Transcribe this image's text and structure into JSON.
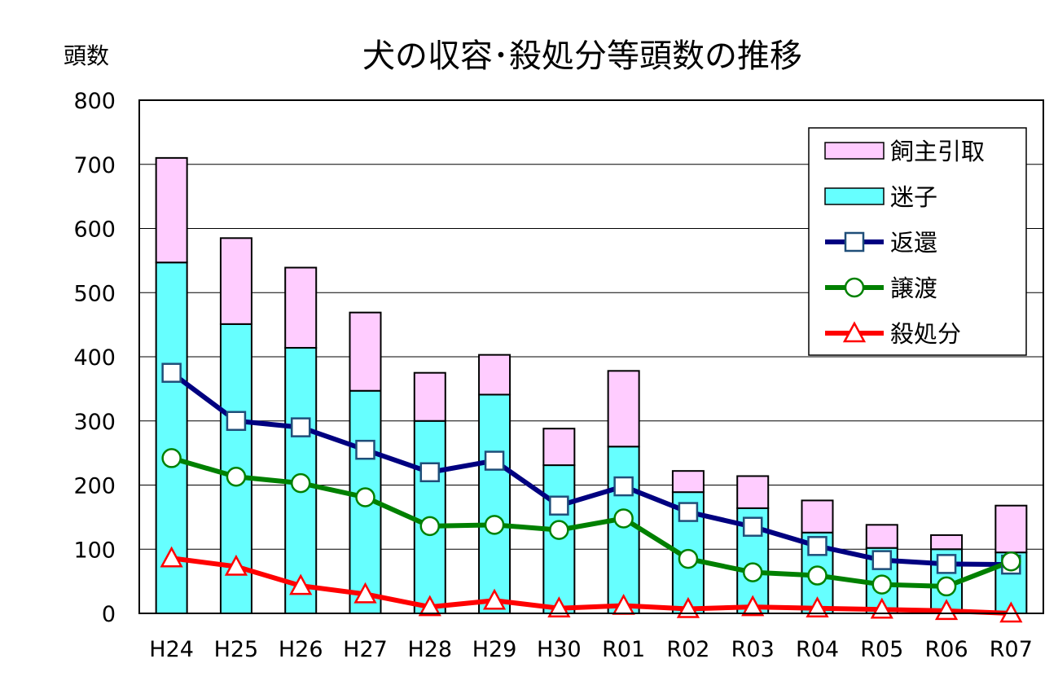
{
  "chart_data": {
    "type": "bar",
    "title": "犬の収容･殺処分等頭数の推移",
    "ylabel": "頭数",
    "xlabel": "",
    "ylim": [
      0,
      800
    ],
    "yticks": [
      0,
      100,
      200,
      300,
      400,
      500,
      600,
      700,
      800
    ],
    "grid": true,
    "legend_position": "top-right",
    "categories": [
      "H24",
      "H25",
      "H26",
      "H27",
      "H28",
      "H29",
      "H30",
      "R01",
      "R02",
      "R03",
      "R04",
      "R05",
      "R06",
      "R07"
    ],
    "stacked_bars": [
      {
        "name": "飼主引取",
        "color": "#ffccff",
        "values": [
          163,
          134,
          125,
          122,
          75,
          62,
          57,
          118,
          33,
          50,
          50,
          36,
          22,
          73
        ]
      },
      {
        "name": "迷子",
        "color": "#66ffff",
        "values": [
          547,
          451,
          414,
          347,
          300,
          341,
          231,
          260,
          189,
          164,
          126,
          102,
          100,
          95
        ]
      }
    ],
    "series": [
      {
        "name": "返還",
        "color": "#000080",
        "marker": "square",
        "values": [
          375,
          300,
          290,
          255,
          220,
          238,
          168,
          198,
          158,
          135,
          105,
          83,
          77,
          76
        ]
      },
      {
        "name": "譲渡",
        "color": "#008000",
        "marker": "circle",
        "values": [
          242,
          213,
          203,
          181,
          136,
          138,
          130,
          148,
          85,
          64,
          59,
          45,
          42,
          81
        ]
      },
      {
        "name": "殺処分",
        "color": "#ff0000",
        "marker": "triangle",
        "values": [
          86,
          73,
          43,
          30,
          10,
          20,
          8,
          12,
          7,
          10,
          8,
          6,
          4,
          0
        ]
      }
    ],
    "legend_order": [
      "飼主引取",
      "迷子",
      "返還",
      "譲渡",
      "殺処分"
    ]
  }
}
